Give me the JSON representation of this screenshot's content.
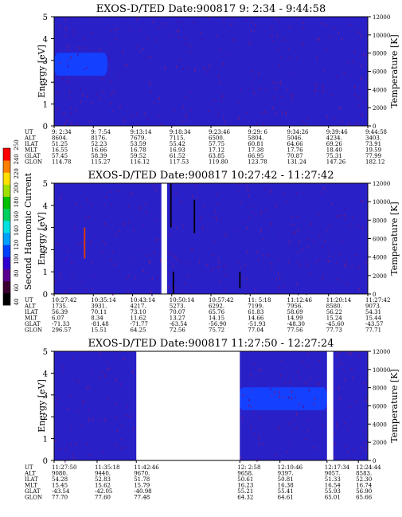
{
  "chart_data": [
    {
      "type": "heatmap",
      "title": "EXOS-D/TED   Date:900817   9: 2:34 - 9:44:58",
      "ylabel": "Energy [eV]",
      "y2label": "Temperature [K]",
      "ylim": [
        0,
        5
      ],
      "y2lim": [
        0,
        12000
      ],
      "yticks": [
        "0",
        "1",
        "2",
        "3",
        "4",
        "5"
      ],
      "y2ticks": [
        "0",
        "2000",
        "4000",
        "6000",
        "8000",
        "10000",
        "12000"
      ],
      "background_color": "#2a20c8",
      "band": {
        "t_start": 0.0,
        "t_end": 0.17,
        "e_low": 2.3,
        "e_high": 3.35,
        "color": "#1440ff"
      },
      "gaps": [],
      "ephemeris": {
        "labels": [
          "UT",
          "ALT",
          "ILAT",
          "MLT",
          "GLAT",
          "GLON"
        ],
        "columns": [
          [
            "9: 2:34",
            "8604.",
            "51.25",
            "16.55",
            "57.45",
            "114.78"
          ],
          [
            "9: 7:54",
            "8176.",
            "52.23",
            "16.66",
            "58.39",
            "115.27"
          ],
          [
            "9:13:14",
            "7679.",
            "53.59",
            "16.78",
            "59.52",
            "116.12"
          ],
          [
            "9:18:34",
            "7115.",
            "55.42",
            "16.93",
            "61.52",
            "117.53"
          ],
          [
            "9:23:46",
            "6500.",
            "57.75",
            "17.12",
            "63.85",
            "119.80"
          ],
          [
            "9:29: 6",
            "5804.",
            "60.81",
            "17.38",
            "66.95",
            "123.78"
          ],
          [
            "9:34:26",
            "5046.",
            "64.66",
            "17.76",
            "70.87",
            "131.24"
          ],
          [
            "9:39:46",
            "4234.",
            "69.26",
            "18.40",
            "75.31",
            "147.26"
          ],
          [
            "9:44:58",
            "3403.",
            "73.91",
            "19.59",
            "77.99",
            "182.12"
          ]
        ]
      }
    },
    {
      "type": "heatmap",
      "title": "EXOS-D/TED   Date:900817   10:27:42 - 11:27:42",
      "ylabel": "Energy [eV]",
      "y2label": "Temperature [K]",
      "ylim": [
        0,
        5
      ],
      "y2lim": [
        0,
        12000
      ],
      "yticks": [
        "0",
        "1",
        "2",
        "3",
        "4",
        "5"
      ],
      "y2ticks": [
        "0",
        "2000",
        "4000",
        "6000",
        "8000",
        "10000",
        "12000"
      ],
      "background_color": "#2a20c8",
      "band": null,
      "gaps": [
        [
          0.342,
          0.36
        ]
      ],
      "ephemeris": {
        "labels": [
          "UT",
          "ALT",
          "ILAT",
          "MLT",
          "GLAT",
          "GLON"
        ],
        "columns": [
          [
            "10:27:42",
            "1735.",
            "56.39",
            "6.07",
            "-71.33",
            "296.57"
          ],
          [
            "10:35:14",
            "3931.",
            "70.11",
            "8.34",
            "-81.48",
            "15.51"
          ],
          [
            "10:43:14",
            "4217.",
            "73.10",
            "11.62",
            "-71.77",
            "64.25"
          ],
          [
            "10:50:14",
            "5273.",
            "70.07",
            "13.27",
            "-63.54",
            "72.56"
          ],
          [
            "10:57:42",
            "6292.",
            "65.76",
            "14.15",
            "-56.90",
            "75.72"
          ],
          [
            "11: 5:18",
            "7199.",
            "61.83",
            "14.66",
            "-51.93",
            "77.04"
          ],
          [
            "11:12:46",
            "7956.",
            "58.69",
            "14.99",
            "-48.30",
            "77.56"
          ],
          [
            "11:20:14",
            "8580.",
            "56.22",
            "15.24",
            "-45.60",
            "77.73"
          ],
          [
            "11:27:42",
            "9073.",
            "54.31",
            "15.44",
            "-43.57",
            "77.71"
          ]
        ]
      }
    },
    {
      "type": "heatmap",
      "title": "EXOS-D/TED   Date:900817   11:27:50 - 12:27:24",
      "ylabel": "Energy [eV]",
      "y2label": "Temperature [K]",
      "ylim": [
        0,
        5
      ],
      "y2lim": [
        0,
        12000
      ],
      "yticks": [
        "0",
        "1",
        "2",
        "3",
        "4",
        "5"
      ],
      "y2ticks": [
        "0",
        "2000",
        "4000",
        "6000",
        "8000",
        "10000",
        "12000"
      ],
      "background_color": "#2a20c8",
      "band": {
        "t_start": 0.59,
        "t_end": 0.87,
        "e_low": 2.3,
        "e_high": 3.35,
        "color": "#1440ff"
      },
      "gaps": [
        [
          0.262,
          0.592
        ],
        [
          0.87,
          0.89
        ]
      ],
      "ephemeris": {
        "labels": [
          "UT",
          "ALT",
          "ILAT",
          "MLT",
          "GLAT",
          "GLON"
        ],
        "columns": [
          [
            "11:27:50",
            "9080.",
            "54.28",
            "15.45",
            "-43.54",
            "77.70"
          ],
          [
            "11:35:18",
            "9440.",
            "52.83",
            "15.62",
            "-42.05",
            "77.60"
          ],
          [
            "11:42:46",
            "9670.",
            "51.78",
            "15.79",
            "-40.98",
            "77.48"
          ],
          [
            "12: 2:58",
            "9658.",
            "50.61",
            "16.23",
            "55.21",
            "64.32"
          ],
          [
            "12:10:46",
            "9397.",
            "50.81",
            "16.38",
            "55.41",
            "64.61"
          ],
          [
            "12:17:34",
            "9057.",
            "51.33",
            "16.54",
            "55.93",
            "65.01"
          ],
          [
            "12:24:44",
            "8583.",
            "52.30",
            "16.74",
            "56.90",
            "65.66"
          ]
        ]
      }
    }
  ],
  "colorbar": {
    "label": "Second Harmonic Current",
    "tick_labels": [
      "40",
      "60",
      "80",
      "100",
      "120",
      "140",
      "160",
      "180",
      "200",
      "220",
      "240",
      "250"
    ],
    "colors": [
      "#000000",
      "#3a0030",
      "#5a0090",
      "#3000d0",
      "#0040ff",
      "#00a0ff",
      "#00e0e0",
      "#00d060",
      "#00c000",
      "#a0e000",
      "#ffe000",
      "#ff8000",
      "#ff0000"
    ]
  }
}
